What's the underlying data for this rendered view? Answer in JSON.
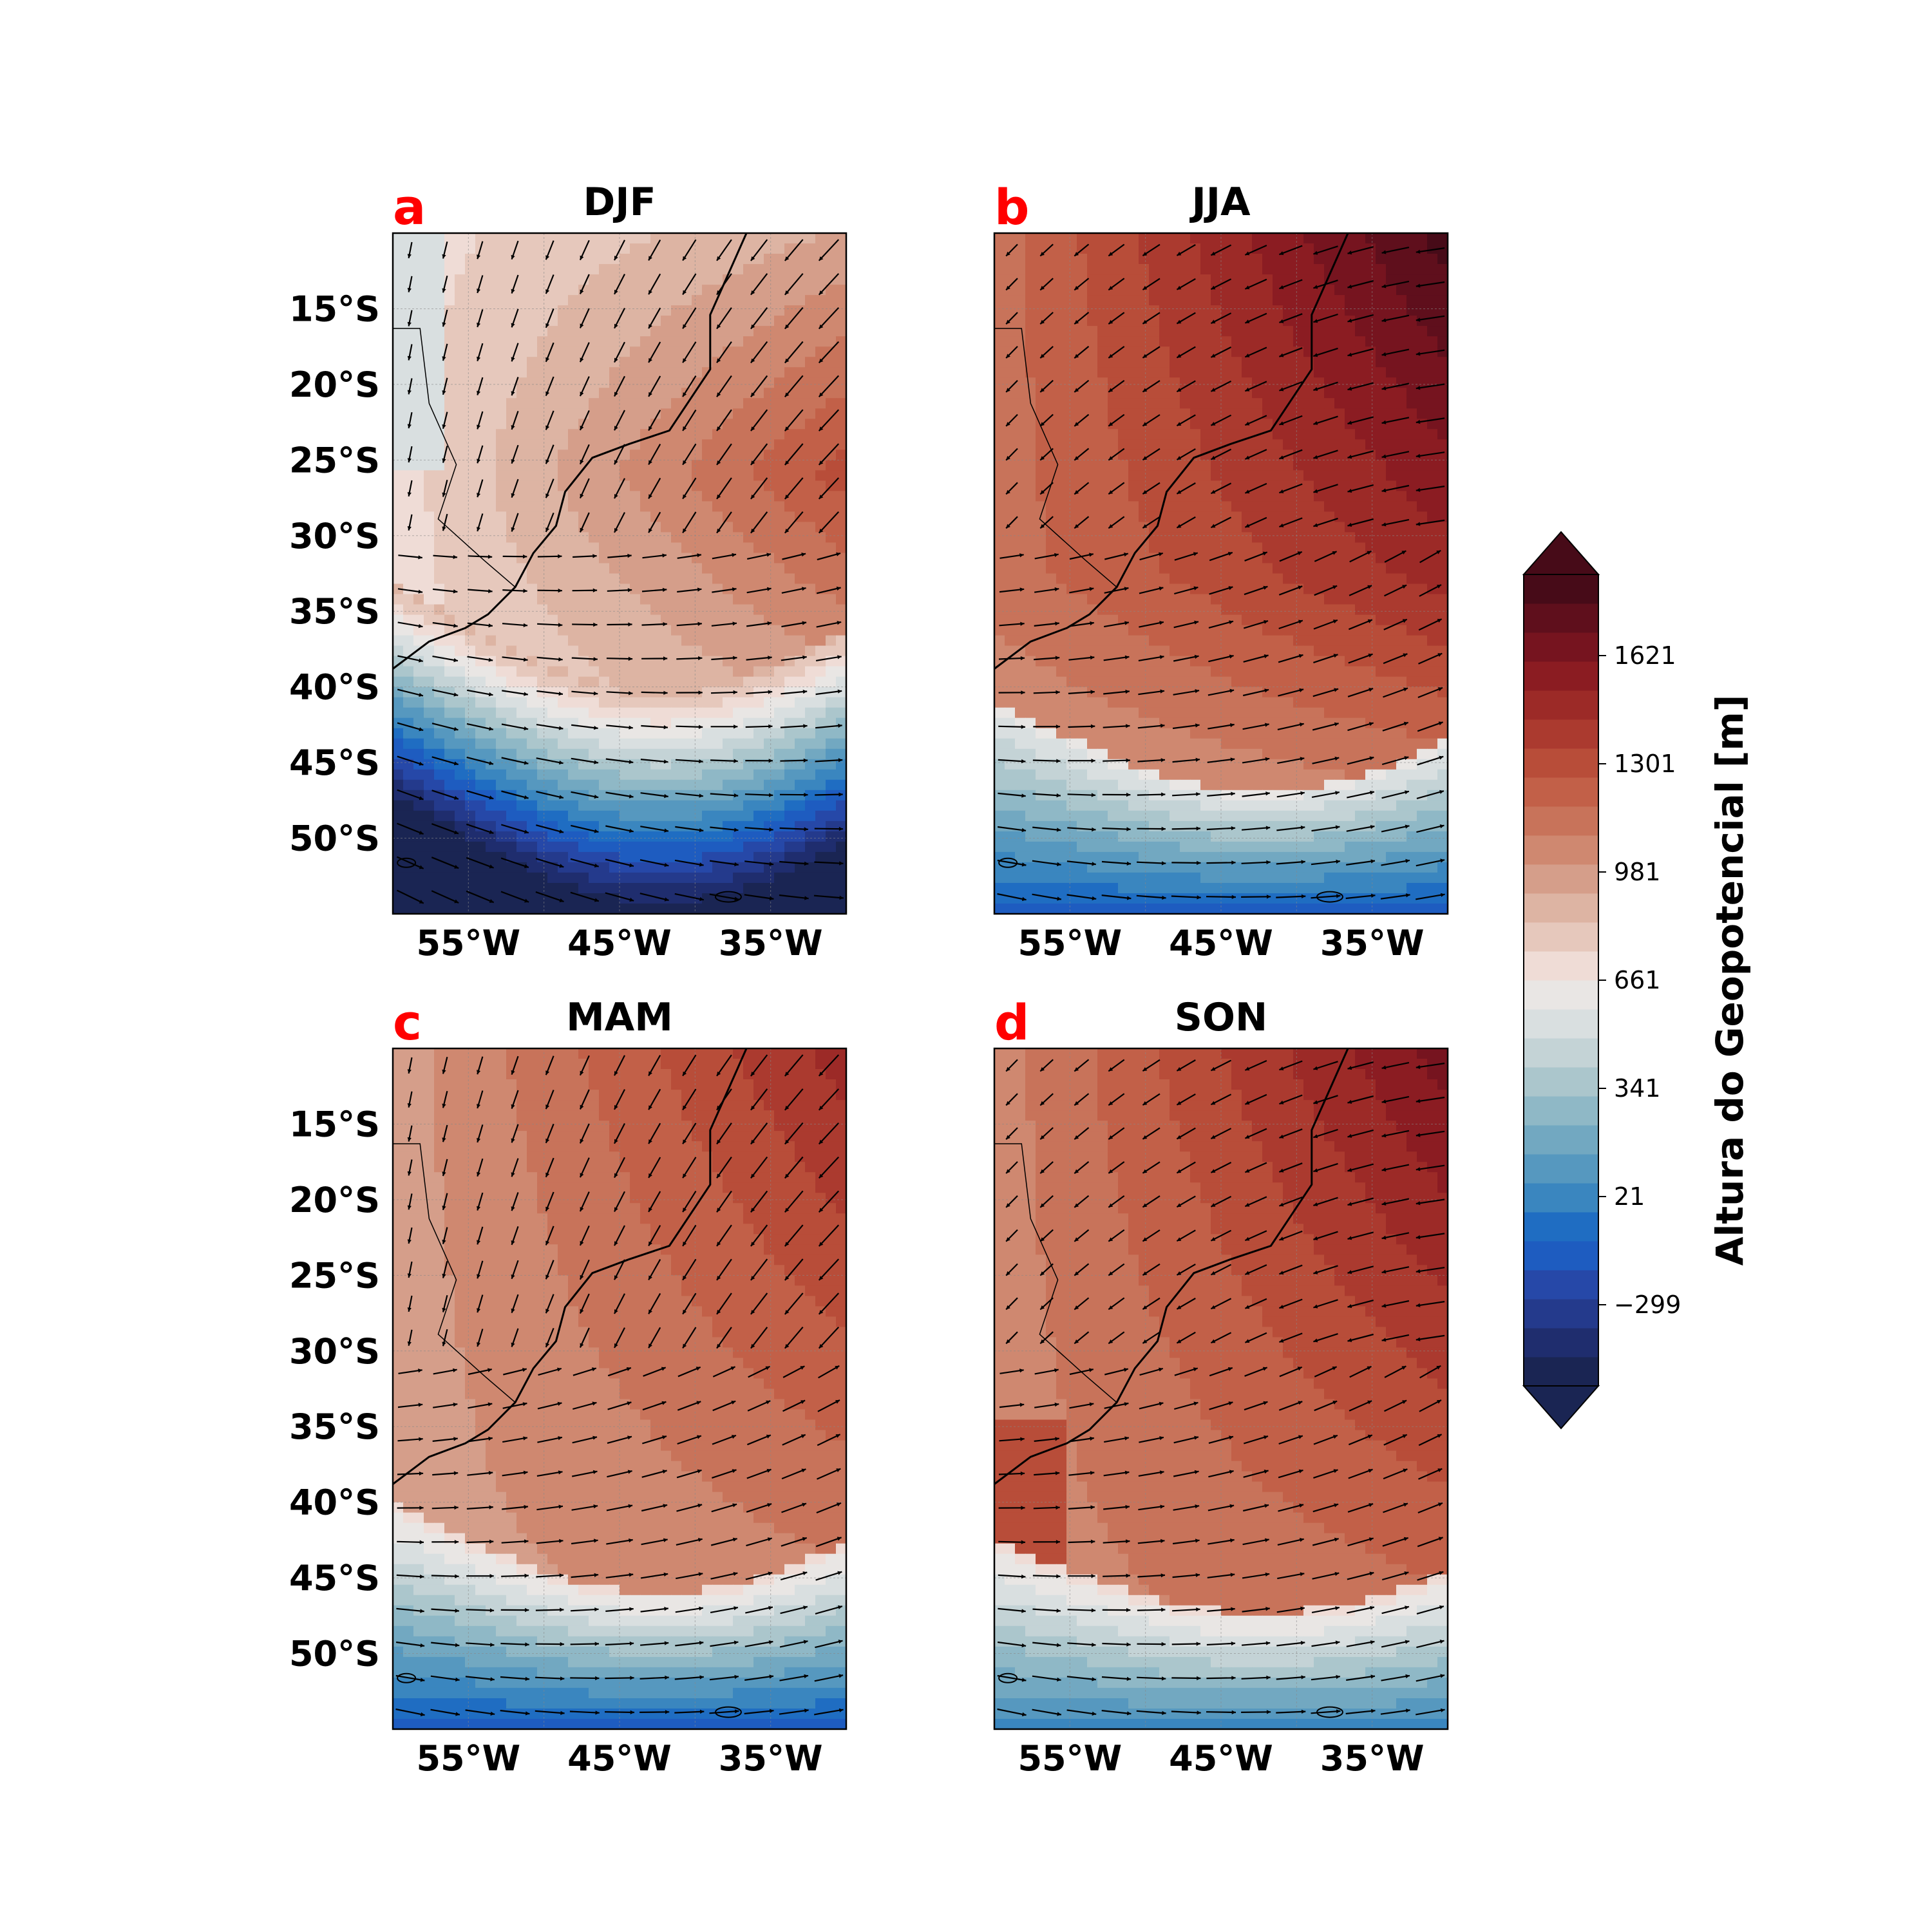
{
  "figure": {
    "colorbar": {
      "label": "Altura do Geopotencial [m]",
      "ticks": [
        "−299",
        "21",
        "341",
        "661",
        "981",
        "1301",
        "1621"
      ],
      "tick_values": [
        -299,
        21,
        341,
        661,
        981,
        1301,
        1621
      ],
      "range": [
        -539,
        1861
      ],
      "extend": "both",
      "colors": [
        "#1a2553",
        "#1f2d6e",
        "#243a8c",
        "#2648a8",
        "#1e5cc0",
        "#1f6dc2",
        "#3a86bf",
        "#5698bf",
        "#72a8c1",
        "#8fb8c6",
        "#abc6cc",
        "#c4d3d6",
        "#d9dfe0",
        "#e9e6e4",
        "#efdcd6",
        "#e6c8bc",
        "#ddb4a3",
        "#d59e8a",
        "#cf8870",
        "#c8735a",
        "#c26048",
        "#b84d39",
        "#ab3a2f",
        "#9c2a27",
        "#8b1c22",
        "#76141f",
        "#5f0f1c",
        "#470b18"
      ]
    },
    "panels": [
      {
        "letter": "a",
        "title": "DJF"
      },
      {
        "letter": "b",
        "title": "JJA"
      },
      {
        "letter": "c",
        "title": "MAM"
      },
      {
        "letter": "d",
        "title": "SON"
      }
    ],
    "lat_ticks": [
      "15°S",
      "20°S",
      "25°S",
      "30°S",
      "35°S",
      "40°S",
      "45°S",
      "50°S"
    ],
    "lon_ticks": [
      "55°W",
      "45°W",
      "35°W"
    ],
    "map_extent": {
      "lon": [
        -60,
        -30
      ],
      "lat": [
        -55,
        -10
      ]
    }
  }
}
